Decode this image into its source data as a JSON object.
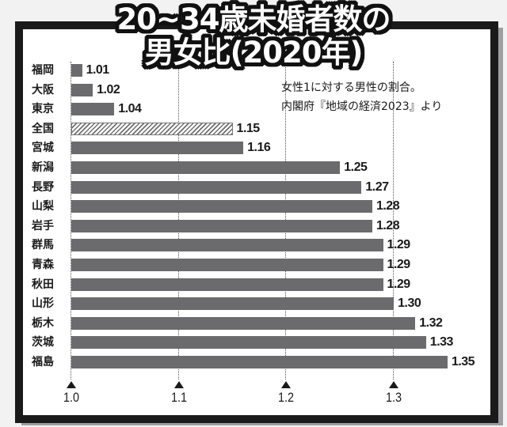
{
  "title": {
    "line1": "20~34歳未婚者数の",
    "line2": "男女比(2020年)"
  },
  "note": {
    "line1": "女性1に対する男性の割合。",
    "line2": "内閣府『地域の経済2023』より"
  },
  "colors": {
    "bar": "#6b6b6d",
    "frame": "#1a1a1a",
    "shadow": "#9c9ea2",
    "national_bar_pattern": "hatched"
  },
  "chart_data": {
    "type": "bar",
    "orientation": "horizontal",
    "title": "20~34歳未婚者数の男女比(2020年)",
    "subtitle": "女性1に対する男性の割合。内閣府『地域の経済2023』より",
    "xlabel": "",
    "ylabel": "",
    "xlim": [
      1.0,
      1.37
    ],
    "xticks": [
      "1.0",
      "1.1",
      "1.2",
      "1.3"
    ],
    "grid": "dotted vertical at ticks",
    "categories": [
      "福岡",
      "大阪",
      "東京",
      "全国",
      "宮城",
      "新潟",
      "長野",
      "山梨",
      "岩手",
      "群馬",
      "青森",
      "秋田",
      "山形",
      "栃木",
      "茨城",
      "福島"
    ],
    "values": [
      1.01,
      1.02,
      1.04,
      1.15,
      1.16,
      1.25,
      1.27,
      1.28,
      1.28,
      1.29,
      1.29,
      1.29,
      1.3,
      1.32,
      1.33,
      1.35
    ],
    "value_labels": [
      "1.01",
      "1.02",
      "1.04",
      "1.15",
      "1.16",
      "1.25",
      "1.27",
      "1.28",
      "1.28",
      "1.29",
      "1.29",
      "1.29",
      "1.30",
      "1.32",
      "1.33",
      "1.35"
    ],
    "highlight": {
      "category": "全国",
      "style": "hatched"
    }
  }
}
